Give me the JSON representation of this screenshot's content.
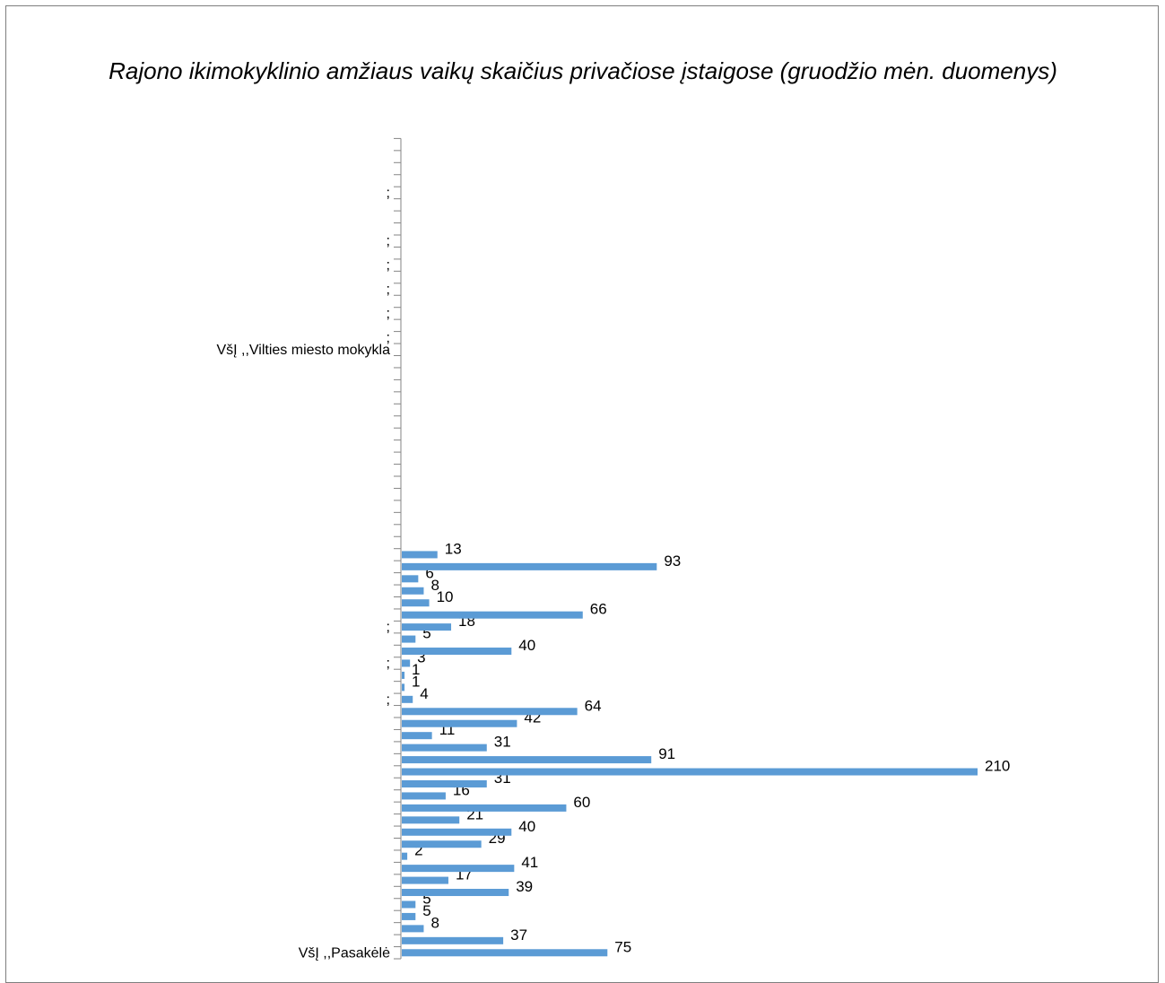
{
  "chart_data": {
    "type": "bar",
    "orientation": "horizontal",
    "title": "Rajono ikimokyklinio amžiaus vaikų skaičius privačiose įstaigose (gruodžio mėn. duomenys)",
    "categories": [
      "VšĮ ,,Pasakėlė",
      "",
      "",
      "",
      "",
      "",
      "",
      "",
      "",
      "",
      "",
      "",
      "",
      "",
      "",
      "",
      "",
      "",
      "",
      "",
      "",
      ";",
      "",
      "",
      ";",
      "",
      "",
      ";",
      "",
      "",
      "",
      "",
      "",
      "",
      "",
      "",
      "",
      "",
      "",
      "",
      "",
      "",
      "",
      "",
      "",
      "",
      "",
      "",
      "",
      "",
      "VšĮ ,,Vilties miesto mokykla",
      ";",
      "",
      ";",
      "",
      ";",
      "",
      ";",
      "",
      ";",
      "",
      "",
      "",
      ";",
      "",
      "",
      "",
      ""
    ],
    "values": [
      75,
      37,
      8,
      5,
      5,
      39,
      17,
      41,
      2,
      29,
      40,
      21,
      60,
      16,
      31,
      210,
      91,
      31,
      11,
      42,
      64,
      4,
      1,
      1,
      3,
      40,
      5,
      18,
      66,
      10,
      8,
      6,
      93,
      13,
      null,
      null,
      null,
      null,
      null,
      null,
      null,
      null,
      null,
      null,
      null,
      null,
      null,
      null,
      null,
      null,
      null,
      null,
      null,
      null,
      null,
      null,
      null,
      null,
      null,
      null,
      null,
      null,
      null,
      null,
      null,
      null,
      null,
      null
    ],
    "data_labels": true,
    "bar_color": "#5b9bd5",
    "xlim": [
      0,
      210
    ],
    "grid": false,
    "legend": "none"
  }
}
